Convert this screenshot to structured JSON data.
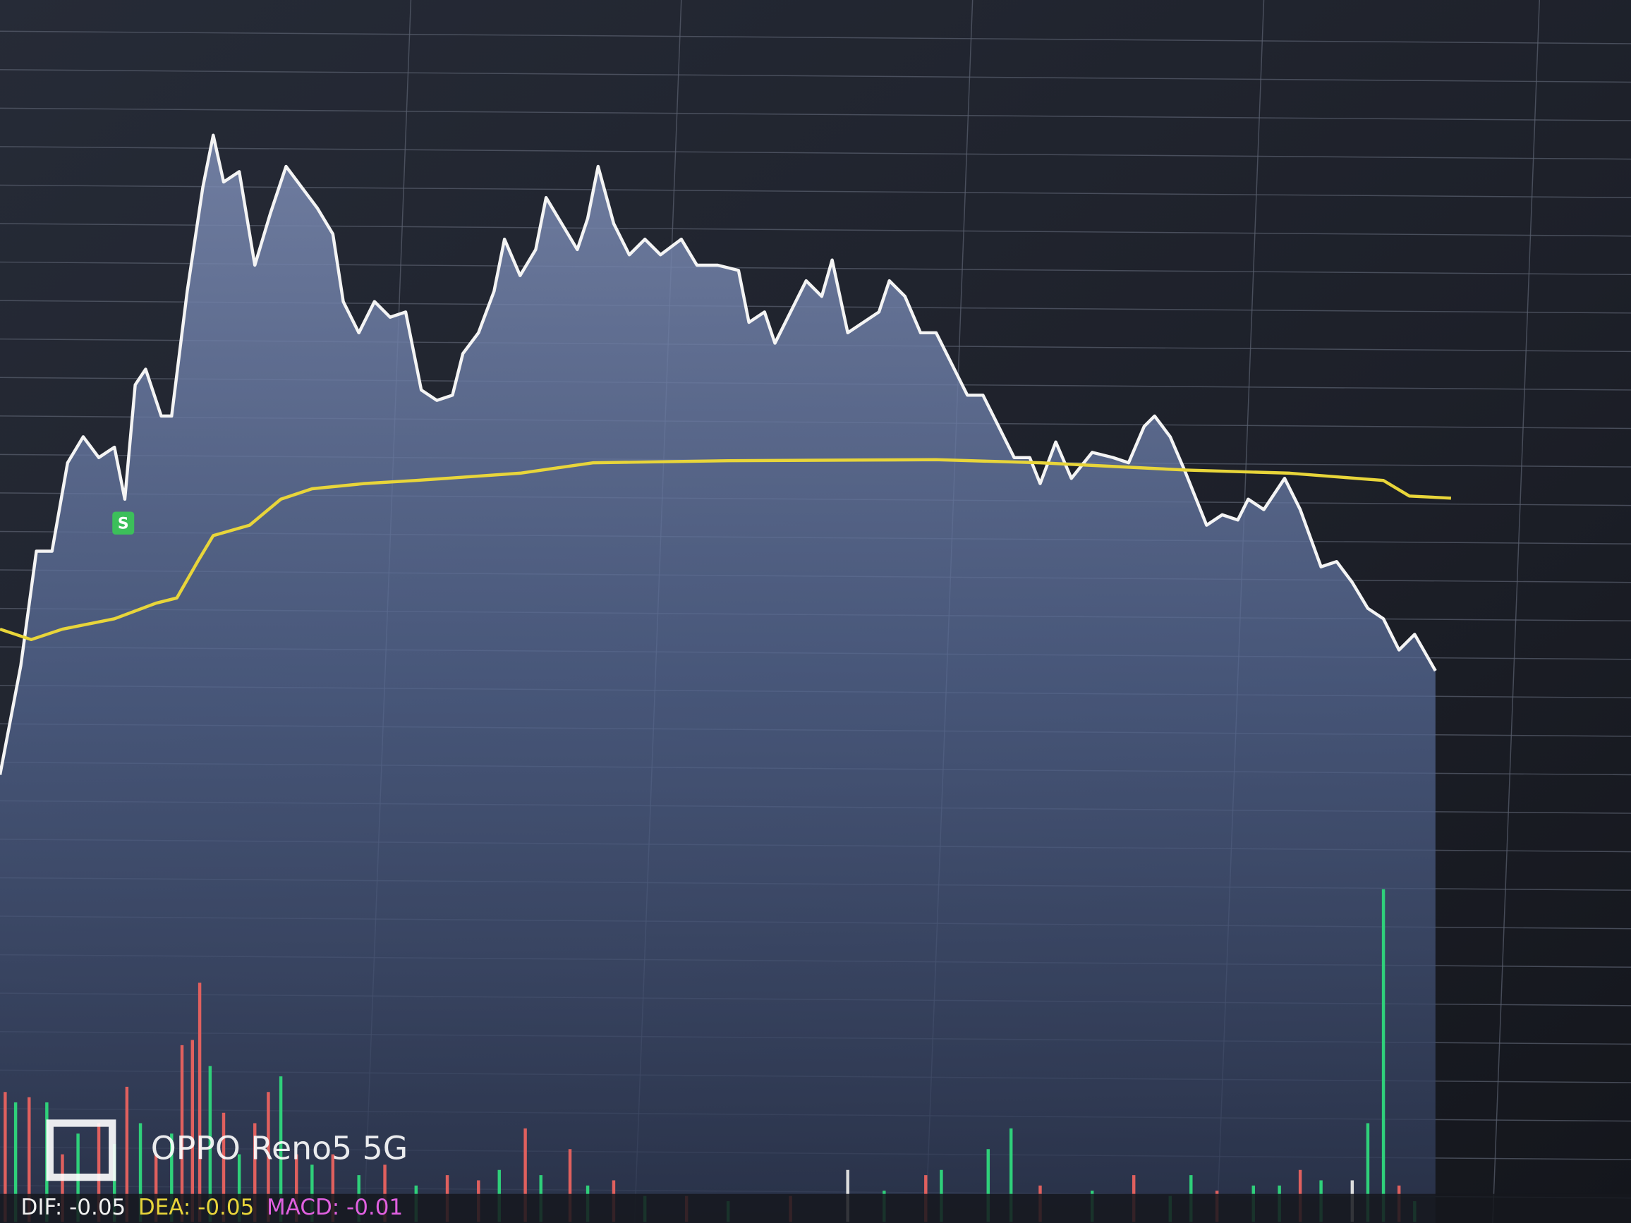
{
  "chart_data": [
    {
      "type": "line",
      "xlim": [
        0,
        1568
      ],
      "ylim": [
        0,
        800
      ],
      "fill": true,
      "series": [
        {
          "color": "#f4f4f4",
          "x": [
            0,
            20,
            35,
            50,
            65,
            80,
            95,
            110,
            120,
            130,
            140,
            155,
            165,
            180,
            195,
            205,
            215,
            230,
            245,
            260,
            275,
            290,
            305,
            320,
            330,
            345,
            360,
            375,
            390,
            405,
            420,
            435,
            445,
            460,
            475,
            485,
            500,
            515,
            525,
            540,
            555,
            565,
            575,
            590,
            605,
            620,
            635,
            655,
            670,
            690,
            710,
            720,
            735,
            745,
            760,
            775,
            790,
            800,
            815,
            830,
            845,
            855,
            870,
            885,
            900,
            915,
            930,
            945,
            960,
            975,
            990,
            1000,
            1015,
            1030,
            1050,
            1070,
            1085,
            1100,
            1110,
            1125,
            1140,
            1160,
            1175,
            1190,
            1200,
            1215,
            1235,
            1250,
            1270,
            1285,
            1300,
            1315,
            1330,
            1345,
            1360,
            1380
          ],
          "values": [
            55,
            160,
            270,
            270,
            355,
            380,
            360,
            370,
            320,
            430,
            445,
            400,
            400,
            520,
            620,
            670,
            625,
            635,
            545,
            595,
            640,
            620,
            600,
            575,
            510,
            480,
            510,
            495,
            500,
            425,
            415,
            420,
            460,
            480,
            520,
            570,
            535,
            560,
            610,
            585,
            560,
            590,
            640,
            585,
            555,
            570,
            555,
            570,
            545,
            545,
            540,
            490,
            500,
            470,
            500,
            530,
            515,
            550,
            480,
            490,
            500,
            530,
            515,
            480,
            480,
            450,
            420,
            420,
            390,
            360,
            360,
            335,
            375,
            340,
            365,
            360,
            355,
            390,
            400,
            380,
            345,
            295,
            305,
            300,
            320,
            310,
            340,
            310,
            255,
            260,
            240,
            215,
            205,
            175,
            190,
            155
          ]
        },
        {
          "color": "#e8d53a",
          "x": [
            0,
            30,
            60,
            110,
            150,
            170,
            190,
            205,
            240,
            270,
            300,
            350,
            400,
            500,
            570,
            700,
            900,
            1000,
            1140,
            1240,
            1330,
            1355,
            1395
          ],
          "values": [
            195,
            185,
            195,
            205,
            220,
            225,
            260,
            285,
            295,
            320,
            330,
            335,
            338,
            345,
            355,
            357,
            358,
            355,
            348,
            345,
            338,
            323,
            321
          ]
        }
      ]
    },
    {
      "type": "bar",
      "xlim": [
        0,
        1568
      ],
      "ylim": [
        0,
        400
      ],
      "series": [
        {
          "color": "#e0605e",
          "x": [
            5,
            28,
            60,
            95,
            122,
            150,
            175,
            185,
            192,
            215,
            245,
            258,
            285,
            320,
            370,
            430,
            460,
            505,
            548,
            590,
            660,
            760,
            890,
            1000,
            1090,
            1170,
            1250,
            1345
          ],
          "values": [
            125,
            120,
            65,
            95,
            130,
            65,
            170,
            175,
            230,
            105,
            95,
            125,
            65,
            65,
            55,
            45,
            40,
            90,
            70,
            40,
            25,
            25,
            45,
            35,
            45,
            30,
            50,
            35
          ]
        },
        {
          "color": "#2fd07a",
          "x": [
            15,
            45,
            75,
            110,
            135,
            165,
            202,
            230,
            270,
            300,
            345,
            400,
            480,
            520,
            565,
            620,
            700,
            850,
            905,
            950,
            972,
            1050,
            1125,
            1145,
            1205,
            1230,
            1270,
            1315,
            1330,
            1360
          ],
          "values": [
            115,
            115,
            85,
            75,
            95,
            85,
            150,
            65,
            140,
            55,
            45,
            35,
            50,
            45,
            35,
            25,
            20,
            30,
            50,
            70,
            90,
            30,
            25,
            45,
            35,
            35,
            40,
            95,
            320,
            20
          ]
        },
        {
          "color": "#dddddd",
          "x": [
            815,
            1300
          ],
          "values": [
            50,
            40
          ]
        }
      ]
    }
  ],
  "marker": "S",
  "indicators": [
    {
      "text": "DIF: -0.05",
      "color": "#f0f0f0"
    },
    {
      "text": "DEA: -0.05",
      "color": "#e8d53a"
    },
    {
      "text": "MACD: -0.01",
      "color": "#e060e0"
    }
  ],
  "watermark": "OPPO Reno5 5G"
}
